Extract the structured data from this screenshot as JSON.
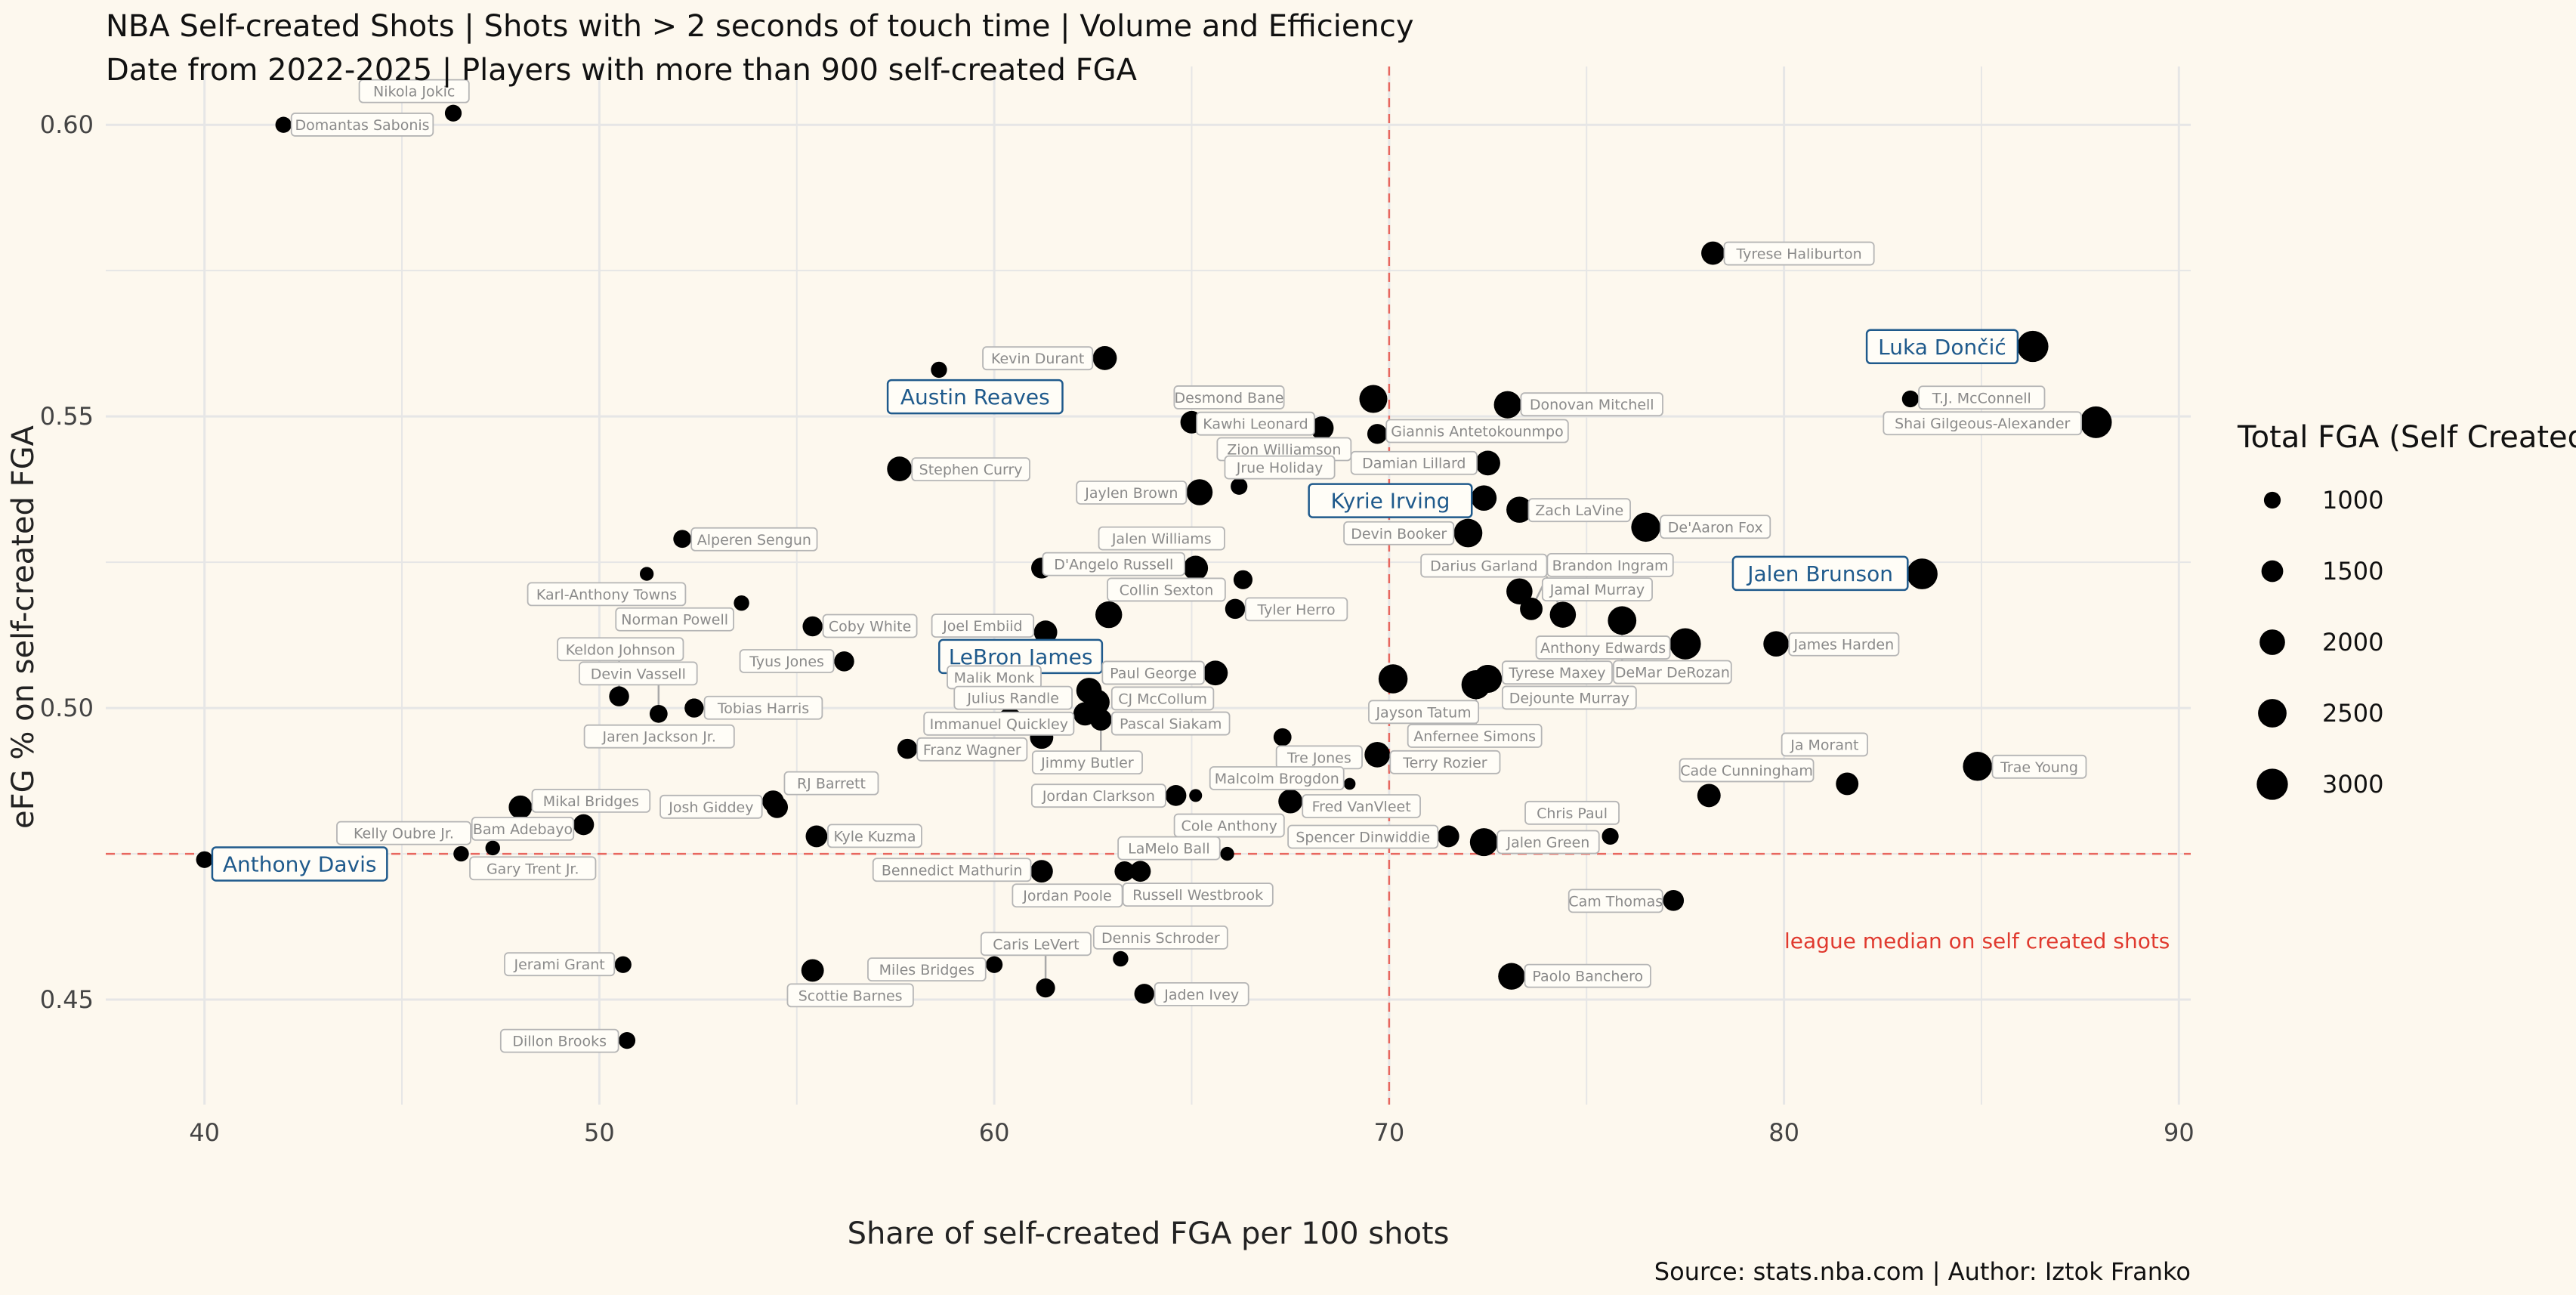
{
  "title": "NBA Self-created Shots | Shots with > 2 seconds of touch time | Volume and Efficiency",
  "subtitle": "Date from 2022-2025 | Players with more than 900 self-created FGA",
  "caption": "Source: stats.nba.com | Author: Iztok Franko",
  "colors": {
    "background": "#fdf8ee",
    "grid": "#e6e6e6",
    "point": "#000000",
    "median_line": "#e8675f",
    "highlight": "#1f5a8c",
    "label_border": "#b5b5b5",
    "label_text": "#8a8a8a"
  },
  "chart_data": {
    "type": "scatter",
    "xlabel": "Share of self-created FGA per 100 shots",
    "ylabel": "eFG % on self-created FGA",
    "xlim": [
      37.5,
      90.3
    ],
    "ylim": [
      0.432,
      0.61
    ],
    "x_ticks": [
      40,
      50,
      60,
      70,
      80,
      90
    ],
    "y_ticks": [
      0.45,
      0.5,
      0.55,
      0.6
    ],
    "y_tick_labels": [
      "0.45",
      "0.50",
      "0.55",
      "0.60"
    ],
    "grid": true,
    "reference_lines": {
      "vertical_x": 70,
      "horizontal_y": 0.475,
      "horizontal_label": "league median on self created shots"
    },
    "size_legend": {
      "title": "Total FGA (Self Created)",
      "position": "right",
      "values": [
        1000,
        1500,
        2000,
        2500,
        3000
      ]
    },
    "points": [
      {
        "name": "Domantas Sabonis",
        "x": 42.0,
        "y": 0.6,
        "fga": 950
      },
      {
        "name": "Nikola Jokic",
        "x": 46.3,
        "y": 0.602,
        "fga": 1000
      },
      {
        "name": "Tyrese Haliburton",
        "x": 78.2,
        "y": 0.578,
        "fga": 1700
      },
      {
        "name": "Luka Dončić",
        "x": 86.3,
        "y": 0.562,
        "fga": 3000,
        "highlight": true
      },
      {
        "name": "T.J. McConnell",
        "x": 83.2,
        "y": 0.553,
        "fga": 1000
      },
      {
        "name": "Shai Gilgeous-Alexander",
        "x": 87.9,
        "y": 0.549,
        "fga": 3100
      },
      {
        "name": "Austin Reaves",
        "x": 58.6,
        "y": 0.558,
        "fga": 950,
        "highlight": true
      },
      {
        "name": "Kevin Durant",
        "x": 62.8,
        "y": 0.56,
        "fga": 1800
      },
      {
        "name": "Desmond Bane",
        "x": 65.0,
        "y": 0.549,
        "fga": 1600
      },
      {
        "name": "Kawhi Leonard",
        "x": 68.3,
        "y": 0.548,
        "fga": 1700
      },
      {
        "name": "Giannis Antetokounmpo",
        "x": 69.6,
        "y": 0.553,
        "fga": 2400
      },
      {
        "name": "Zion Williamson",
        "x": 69.7,
        "y": 0.547,
        "fga": 1300
      },
      {
        "name": "Donovan Mitchell",
        "x": 73.0,
        "y": 0.552,
        "fga": 2300
      },
      {
        "name": "Damian Lillard",
        "x": 72.5,
        "y": 0.542,
        "fga": 1900
      },
      {
        "name": "Stephen Curry",
        "x": 57.6,
        "y": 0.541,
        "fga": 1900
      },
      {
        "name": "Jaylen Brown",
        "x": 65.2,
        "y": 0.537,
        "fga": 2100
      },
      {
        "name": "Jrue Holiday",
        "x": 66.2,
        "y": 0.538,
        "fga": 1000
      },
      {
        "name": "Kyrie Irving",
        "x": 72.4,
        "y": 0.536,
        "fga": 2000,
        "highlight": true
      },
      {
        "name": "Zach LaVine",
        "x": 73.3,
        "y": 0.534,
        "fga": 2100
      },
      {
        "name": "Devin Booker",
        "x": 72.0,
        "y": 0.53,
        "fga": 2500
      },
      {
        "name": "De'Aaron Fox",
        "x": 76.5,
        "y": 0.531,
        "fga": 2600
      },
      {
        "name": "Jalen Brunson",
        "x": 83.5,
        "y": 0.523,
        "fga": 2900,
        "highlight": true
      },
      {
        "name": "Alperen Sengun",
        "x": 52.1,
        "y": 0.529,
        "fga": 1100
      },
      {
        "name": "Karl-Anthony Towns",
        "x": 51.2,
        "y": 0.523,
        "fga": 800
      },
      {
        "name": "D'Angelo Russell",
        "x": 61.2,
        "y": 0.524,
        "fga": 1400
      },
      {
        "name": "Jalen Williams",
        "x": 65.1,
        "y": 0.524,
        "fga": 1900
      },
      {
        "name": "Jamal Murray",
        "x": 73.3,
        "y": 0.52,
        "fga": 2100
      },
      {
        "name": "Collin Sexton",
        "x": 66.3,
        "y": 0.522,
        "fga": 1200
      },
      {
        "name": "Brandon Ingram",
        "x": 73.6,
        "y": 0.517,
        "fga": 1600
      },
      {
        "name": "Darius Garland",
        "x": 74.4,
        "y": 0.516,
        "fga": 2100
      },
      {
        "name": "DeMar DeRozan",
        "x": 75.9,
        "y": 0.515,
        "fga": 2500
      },
      {
        "name": "Norman Powell",
        "x": 53.6,
        "y": 0.518,
        "fga": 900
      },
      {
        "name": "Coby White",
        "x": 55.4,
        "y": 0.514,
        "fga": 1300
      },
      {
        "name": "Joel Embiid",
        "x": 61.3,
        "y": 0.513,
        "fga": 1700
      },
      {
        "name": "Tyler Herro",
        "x": 66.1,
        "y": 0.517,
        "fga": 1300
      },
      {
        "name": "LeBron James",
        "x": 62.9,
        "y": 0.516,
        "fga": 2200,
        "highlight": true
      },
      {
        "name": "Tobias Harris",
        "x": 52.4,
        "y": 0.5,
        "fga": 1200
      },
      {
        "name": "Tyus Jones",
        "x": 56.2,
        "y": 0.508,
        "fga": 1300
      },
      {
        "name": "Jayson Tatum",
        "x": 70.1,
        "y": 0.505,
        "fga": 2600
      },
      {
        "name": "Jaren Jackson Jr.",
        "x": 52.4,
        "y": 0.5,
        "fga": 1200
      },
      {
        "name": "Keldon Johnson",
        "x": 50.5,
        "y": 0.502,
        "fga": 1300
      },
      {
        "name": "Devin Vassell",
        "x": 51.5,
        "y": 0.499,
        "fga": 1100
      },
      {
        "name": "CJ McCollum",
        "x": 62.4,
        "y": 0.503,
        "fga": 2000
      },
      {
        "name": "Paul George",
        "x": 65.6,
        "y": 0.506,
        "fga": 1900
      },
      {
        "name": "Dejounte Murray",
        "x": 72.5,
        "y": 0.505,
        "fga": 2400
      },
      {
        "name": "Anthony Edwards",
        "x": 77.5,
        "y": 0.511,
        "fga": 3000
      },
      {
        "name": "James Harden",
        "x": 79.8,
        "y": 0.511,
        "fga": 2000
      },
      {
        "name": "Anfernee Simons",
        "x": 72.2,
        "y": 0.504,
        "fga": 2600
      },
      {
        "name": "Tyrese Maxey",
        "x": 72.5,
        "y": 0.505,
        "fga": 2400
      },
      {
        "name": "Malik Monk",
        "x": 60.4,
        "y": 0.498,
        "fga": 1800
      },
      {
        "name": "Pascal Siakam",
        "x": 62.6,
        "y": 0.501,
        "fga": 2000
      },
      {
        "name": "Jimmy Butler",
        "x": 62.7,
        "y": 0.498,
        "fga": 1500
      },
      {
        "name": "Franz Wagner",
        "x": 57.8,
        "y": 0.493,
        "fga": 1300
      },
      {
        "name": "Julius Randle",
        "x": 61.2,
        "y": 0.495,
        "fga": 1700
      },
      {
        "name": "Tre Jones",
        "x": 67.3,
        "y": 0.495,
        "fga": 1100
      },
      {
        "name": "Immanuel Quickley",
        "x": 62.3,
        "y": 0.499,
        "fga": 1700
      },
      {
        "name": "Terry Rozier",
        "x": 69.7,
        "y": 0.492,
        "fga": 2000
      },
      {
        "name": "Josh Giddey",
        "x": 54.5,
        "y": 0.483,
        "fga": 1500
      },
      {
        "name": "Mikal Bridges",
        "x": 48.0,
        "y": 0.483,
        "fga": 1700
      },
      {
        "name": "Bam Adebayo",
        "x": 49.6,
        "y": 0.48,
        "fga": 1400
      },
      {
        "name": "RJ Barrett",
        "x": 54.4,
        "y": 0.484,
        "fga": 1500
      },
      {
        "name": "Jordan Clarkson",
        "x": 64.6,
        "y": 0.485,
        "fga": 1400
      },
      {
        "name": "Cole Anthony",
        "x": 65.1,
        "y": 0.485,
        "fga": 750
      },
      {
        "name": "Malcolm Brogdon",
        "x": 69.0,
        "y": 0.487,
        "fga": 700
      },
      {
        "name": "Cade Cunningham",
        "x": 78.1,
        "y": 0.485,
        "fga": 1700
      },
      {
        "name": "Ja Morant",
        "x": 81.6,
        "y": 0.487,
        "fga": 1600
      },
      {
        "name": "Trae Young",
        "x": 84.9,
        "y": 0.49,
        "fga": 2600
      },
      {
        "name": "Spencer Dinwiddie",
        "x": 71.5,
        "y": 0.478,
        "fga": 1500
      },
      {
        "name": "Jalen Green",
        "x": 72.4,
        "y": 0.477,
        "fga": 2400
      },
      {
        "name": "Chris Paul",
        "x": 75.6,
        "y": 0.478,
        "fga": 1000
      },
      {
        "name": "Fred VanVleet",
        "x": 67.5,
        "y": 0.484,
        "fga": 1800
      },
      {
        "name": "Jordan Poole",
        "x": 63.7,
        "y": 0.472,
        "fga": 1400
      },
      {
        "name": "Kyle Kuzma",
        "x": 55.5,
        "y": 0.478,
        "fga": 1500
      },
      {
        "name": "Bennedict Mathurin",
        "x": 61.2,
        "y": 0.472,
        "fga": 1600
      },
      {
        "name": "Russell Westbrook",
        "x": 63.3,
        "y": 0.472,
        "fga": 1300
      },
      {
        "name": "LaMelo Ball",
        "x": 65.9,
        "y": 0.475,
        "fga": 800
      },
      {
        "name": "Anthony Davis",
        "x": 40.0,
        "y": 0.474,
        "fga": 1000,
        "highlight": true
      },
      {
        "name": "Kelly Oubre Jr.",
        "x": 46.5,
        "y": 0.475,
        "fga": 900
      },
      {
        "name": "Gary Trent Jr.",
        "x": 47.3,
        "y": 0.476,
        "fga": 850
      },
      {
        "name": "Cam Thomas",
        "x": 77.2,
        "y": 0.467,
        "fga": 1400
      },
      {
        "name": "Paolo Banchero",
        "x": 73.1,
        "y": 0.454,
        "fga": 2200
      },
      {
        "name": "Jerami Grant",
        "x": 50.6,
        "y": 0.456,
        "fga": 1000
      },
      {
        "name": "Scottie Barnes",
        "x": 55.4,
        "y": 0.455,
        "fga": 1600
      },
      {
        "name": "Miles Bridges",
        "x": 60.0,
        "y": 0.456,
        "fga": 1000
      },
      {
        "name": "Dennis Schroder",
        "x": 63.2,
        "y": 0.457,
        "fga": 900
      },
      {
        "name": "Caris LeVert",
        "x": 61.3,
        "y": 0.452,
        "fga": 1200
      },
      {
        "name": "Jaden Ivey",
        "x": 63.8,
        "y": 0.451,
        "fga": 1300
      },
      {
        "name": "Dillon Brooks",
        "x": 50.7,
        "y": 0.443,
        "fga": 1000
      }
    ]
  }
}
